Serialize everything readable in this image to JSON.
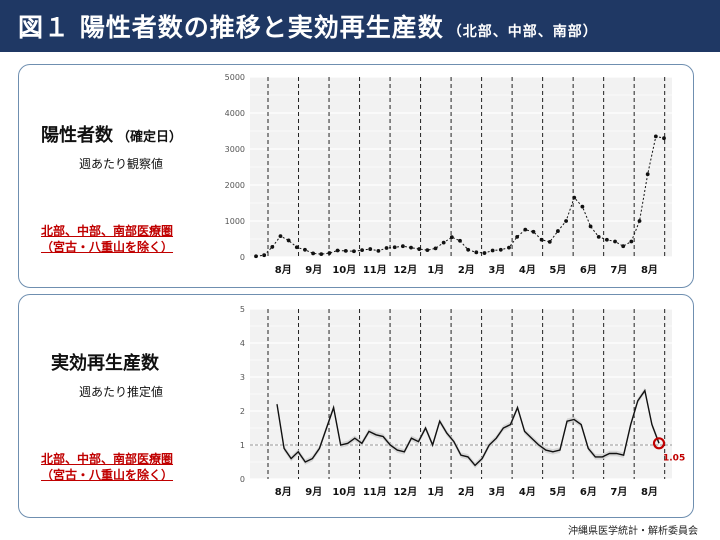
{
  "header": {
    "title": "図１ 陽性者数の推移と実効再生産数",
    "subtitle": "（北部、中部、南部）"
  },
  "panels": {
    "top": {
      "title": "陽性者数",
      "title_suffix": "（確定日）",
      "description": "週あたり観察値",
      "region_line1": "北部、中部、南部医療圏",
      "region_line2": "（宮古・八重山を除く）"
    },
    "bottom": {
      "title": "実効再生産数",
      "description": "週あたり推定値",
      "region_line1": "北部、中部、南部医療圏",
      "region_line2": "（宮古・八重山を除く）"
    }
  },
  "footer": {
    "credit": "沖縄県医学統計・解析委員会"
  },
  "colors": {
    "header_bg": "#1f3864",
    "accent_red": "#c00000",
    "panel_border": "#6f8fb0"
  },
  "chart_data": [
    {
      "type": "line",
      "xlabel": "",
      "ylabel": "",
      "ylim": [
        0,
        5000
      ],
      "yticks": [
        0,
        1000,
        2000,
        3000,
        4000,
        5000
      ],
      "month_labels": [
        "8月",
        "9月",
        "10月",
        "11月",
        "12月",
        "1月",
        "2月",
        "3月",
        "4月",
        "5月",
        "6月",
        "7月",
        "8月"
      ],
      "grid": true,
      "series": [
        {
          "values": [
            20,
            50,
            280,
            580,
            460,
            270,
            200,
            100,
            80,
            110,
            180,
            170,
            160,
            190,
            220,
            170,
            250,
            270,
            300,
            260,
            220,
            190,
            240,
            400,
            550,
            450,
            200,
            130,
            110,
            180,
            200,
            260,
            560,
            760,
            700,
            480,
            420,
            720,
            1000,
            1650,
            1400,
            850,
            560,
            480,
            430,
            300,
            430,
            1000,
            2300,
            3350,
            3300
          ]
        }
      ]
    },
    {
      "type": "line",
      "xlabel": "",
      "ylabel": "",
      "ylim": [
        0,
        5
      ],
      "yticks": [
        0,
        1,
        2,
        3,
        4,
        5
      ],
      "month_labels": [
        "8月",
        "9月",
        "10月",
        "11月",
        "12月",
        "1月",
        "2月",
        "3月",
        "4月",
        "5月",
        "6月",
        "7月",
        "8月"
      ],
      "reference_line": 1,
      "grid": true,
      "series": [
        {
          "values": [
            2.2,
            0.9,
            0.6,
            0.8,
            0.5,
            0.6,
            0.9,
            1.5,
            2.1,
            1.0,
            1.05,
            1.2,
            1.05,
            1.4,
            1.3,
            1.25,
            1.0,
            0.85,
            0.8,
            1.2,
            1.1,
            1.5,
            1.0,
            1.7,
            1.35,
            1.1,
            0.7,
            0.65,
            0.4,
            0.6,
            1.0,
            1.2,
            1.5,
            1.6,
            2.1,
            1.4,
            1.2,
            1.0,
            0.85,
            0.8,
            0.85,
            1.7,
            1.75,
            1.6,
            0.9,
            0.65,
            0.65,
            0.75,
            0.75,
            0.7,
            1.6,
            2.3,
            2.6,
            1.6,
            1.05
          ]
        }
      ],
      "last_value_label": "1.05"
    }
  ]
}
